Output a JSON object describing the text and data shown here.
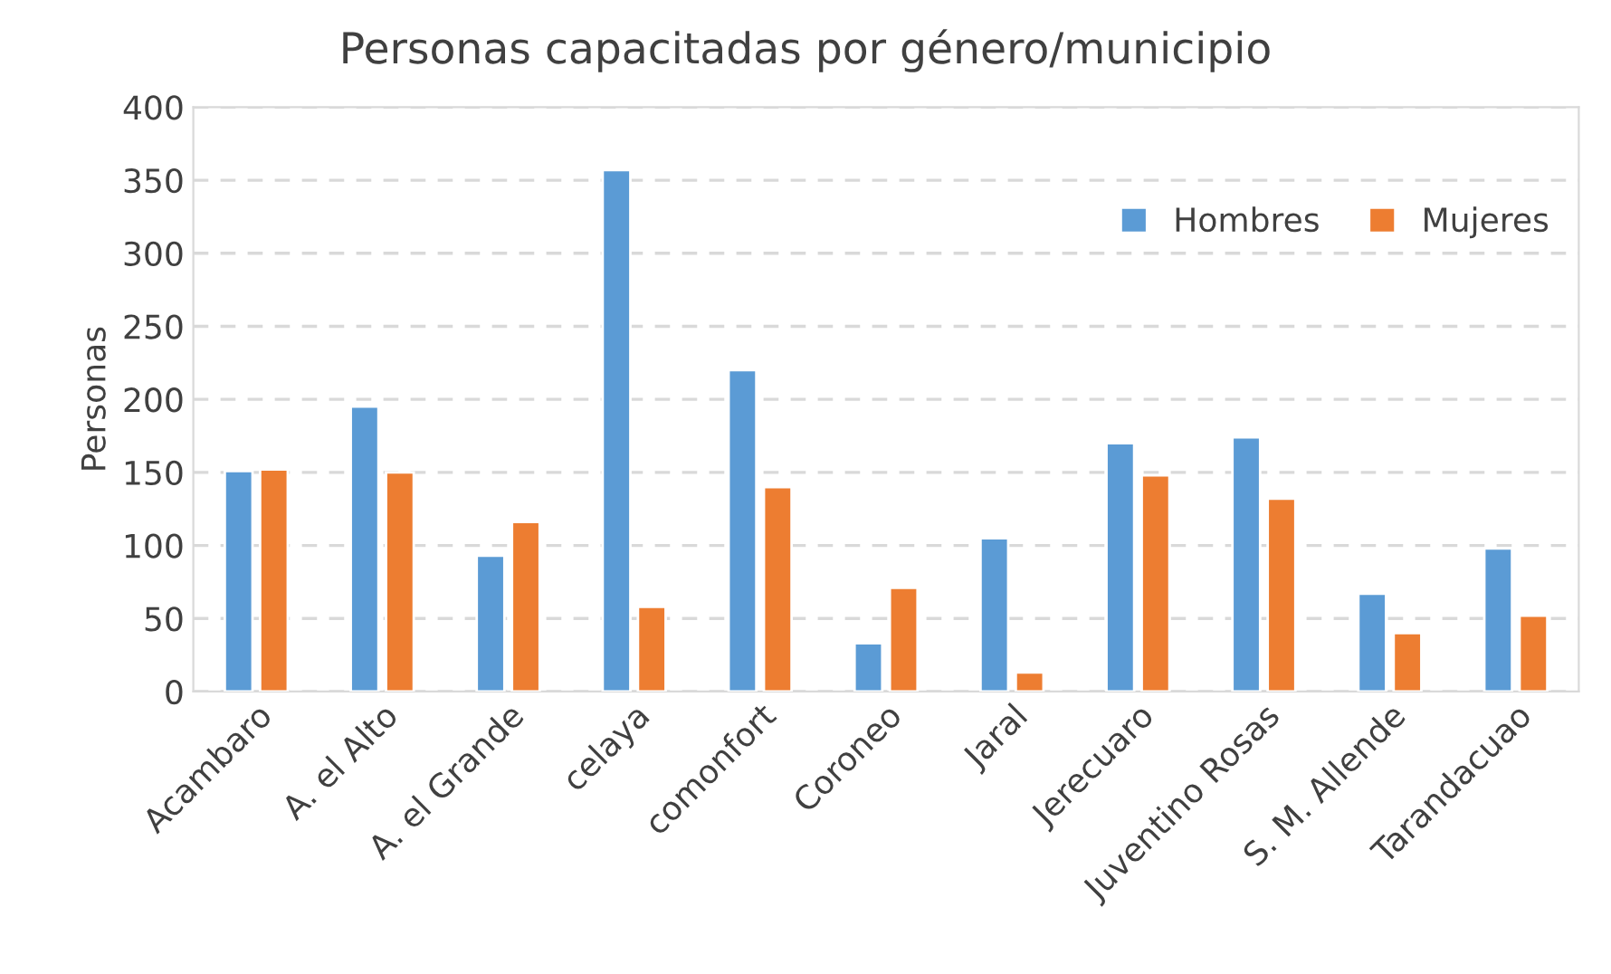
{
  "chart_data": {
    "type": "bar",
    "title": "Personas capacitadas por género/municipio",
    "ylabel": "Personas",
    "categories": [
      "Acambaro",
      "A. el Alto",
      "A. el Grande",
      "celaya",
      "comonfort",
      "Coroneo",
      "Jaral",
      "Jerecuaro",
      "Juventino Rosas",
      "S. M. Allende",
      "Tarandacuao"
    ],
    "series": [
      {
        "name": "Hombres",
        "color": "#5b9bd5",
        "values": [
          151,
          195,
          93,
          357,
          220,
          33,
          105,
          170,
          174,
          67,
          98
        ]
      },
      {
        "name": "Mujeres",
        "color": "#ed7d31",
        "values": [
          152,
          150,
          116,
          58,
          140,
          71,
          13,
          148,
          132,
          40,
          52
        ]
      }
    ],
    "ylim": [
      0,
      400
    ],
    "yticks": [
      0,
      50,
      100,
      150,
      200,
      250,
      300,
      350,
      400
    ],
    "grid": "y",
    "legend": "top right"
  }
}
